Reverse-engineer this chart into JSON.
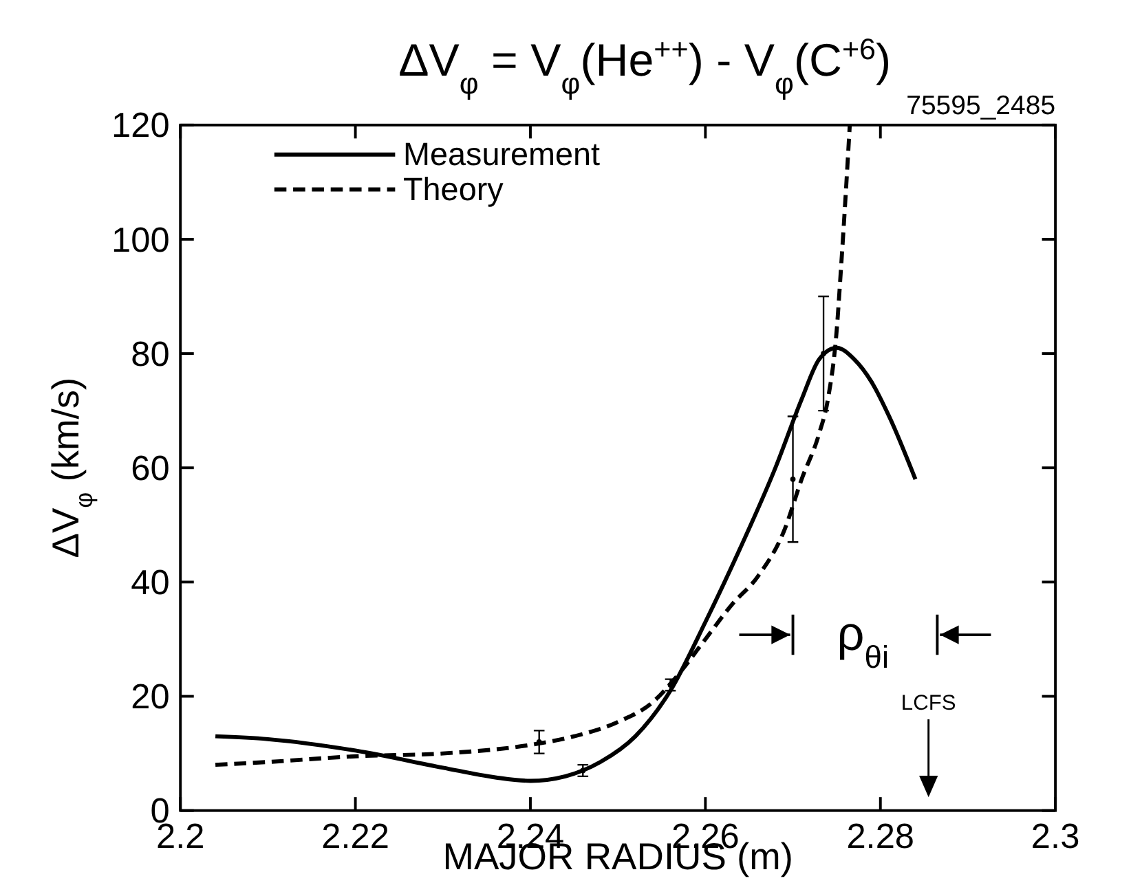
{
  "chart_data": {
    "type": "line",
    "title": "ΔV$_{φ}$ = V$_{φ}$(He$^{++}$) - V$_{φ}$(C$^{+6}$)",
    "xlabel": "MAJOR RADIUS (m)",
    "ylabel": "ΔV$_{φ}$ (km/s)",
    "xlim": [
      2.2,
      2.3
    ],
    "xticks": [
      2.2,
      2.22,
      2.24,
      2.26,
      2.28,
      2.3
    ],
    "ylim": [
      0,
      120
    ],
    "yticks": [
      0,
      20,
      40,
      60,
      80,
      100,
      120
    ],
    "grid": false,
    "legend": "top left",
    "marker": "none",
    "series": [
      {
        "name": "Measurement",
        "color": "#000000",
        "line_style": "solid",
        "x": [
          2.204,
          2.21,
          2.22,
          2.23,
          2.236,
          2.24,
          2.244,
          2.248,
          2.252,
          2.256,
          2.26,
          2.264,
          2.268,
          2.271,
          2.273,
          2.275,
          2.277,
          2.279,
          2.281,
          2.284
        ],
        "values": [
          13,
          12.5,
          10.5,
          7.5,
          5.8,
          5.2,
          6,
          8.5,
          13,
          21,
          33,
          46,
          60,
          72,
          79,
          81,
          79,
          75,
          69,
          58
        ]
      },
      {
        "name": "Theory",
        "color": "#000000",
        "line_style": "dashed",
        "x": [
          2.204,
          2.21,
          2.22,
          2.23,
          2.24,
          2.245,
          2.25,
          2.254,
          2.257,
          2.26,
          2.263,
          2.266,
          2.269,
          2.271,
          2.273,
          2.274,
          2.275,
          2.2755,
          2.276,
          2.2765
        ],
        "values": [
          8,
          8.5,
          9.5,
          10,
          11.5,
          13,
          15.5,
          19,
          24,
          30,
          36,
          41,
          49,
          58,
          66,
          72,
          84,
          95,
          107,
          120
        ]
      },
      {
        "type": "scatter",
        "color": "#000000",
        "marker": "circle",
        "x": [
          2.241,
          2.246,
          2.256,
          2.27,
          2.2735
        ],
        "values": [
          12,
          7,
          22,
          58,
          80
        ],
        "errors": [
          2,
          1,
          1,
          11,
          10
        ]
      }
    ],
    "annotations": [
      "75595_2485",
      "ρ$_{θi}$",
      "LCFS"
    ]
  }
}
